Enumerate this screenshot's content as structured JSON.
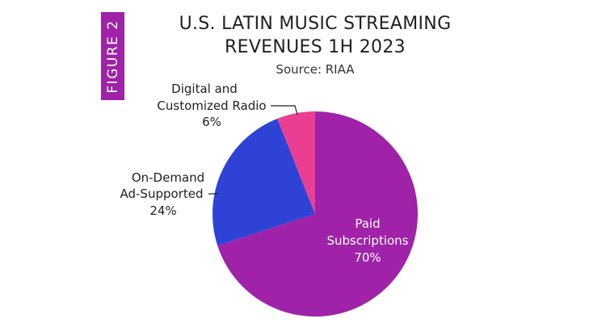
{
  "figure_tab": "FIGURE 2",
  "chart_data": {
    "type": "pie",
    "title_line1": "U.S. LATIN MUSIC STREAMING",
    "title_line2": "REVENUES 1H 2023",
    "subtitle": "Source: RIAA",
    "slices": [
      {
        "label_lines": [
          "Paid",
          "Subscriptions"
        ],
        "pct_label": "70%",
        "value": 70,
        "color": "#9f22a8"
      },
      {
        "label_lines": [
          "On-Demand",
          "Ad-Supported"
        ],
        "pct_label": "24%",
        "value": 24,
        "color": "#2e43d6"
      },
      {
        "label_lines": [
          "Digital and",
          "Customized Radio"
        ],
        "pct_label": "6%",
        "value": 6,
        "color": "#ea3e93"
      }
    ]
  }
}
